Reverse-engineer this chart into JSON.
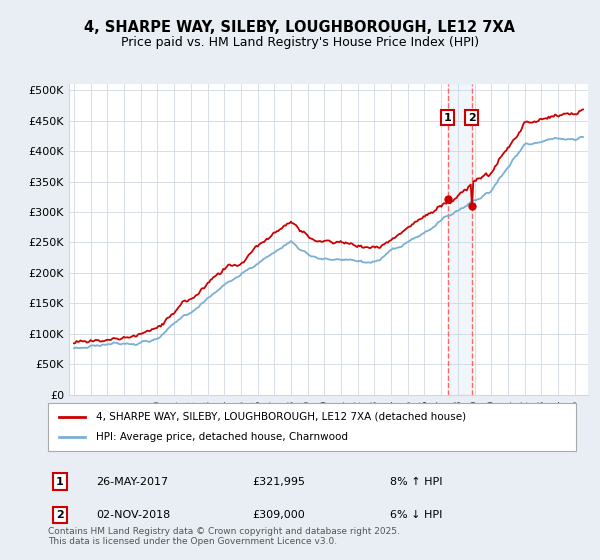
{
  "title1": "4, SHARPE WAY, SILEBY, LOUGHBOROUGH, LE12 7XA",
  "title2": "Price paid vs. HM Land Registry's House Price Index (HPI)",
  "ylabel_ticks": [
    "£0",
    "£50K",
    "£100K",
    "£150K",
    "£200K",
    "£250K",
    "£300K",
    "£350K",
    "£400K",
    "£450K",
    "£500K"
  ],
  "ytick_vals": [
    0,
    50000,
    100000,
    150000,
    200000,
    250000,
    300000,
    350000,
    400000,
    450000,
    500000
  ],
  "ylim": [
    0,
    510000
  ],
  "red_color": "#cc0000",
  "blue_color": "#7bafd4",
  "dashed_color": "#ff6666",
  "span_color": "#c8ddf0",
  "date1": 2017.396,
  "date2": 2018.838,
  "price1": 321995,
  "price2": 309000,
  "legend_label1": "4, SHARPE WAY, SILEBY, LOUGHBOROUGH, LE12 7XA (detached house)",
  "legend_label2": "HPI: Average price, detached house, Charnwood",
  "annotation1_num": "1",
  "annotation1_date": "26-MAY-2017",
  "annotation1_price": "£321,995",
  "annotation1_hpi": "8% ↑ HPI",
  "annotation2_num": "2",
  "annotation2_date": "02-NOV-2018",
  "annotation2_price": "£309,000",
  "annotation2_hpi": "6% ↓ HPI",
  "footer": "Contains HM Land Registry data © Crown copyright and database right 2025.\nThis data is licensed under the Open Government Licence v3.0.",
  "background_color": "#e8eef4",
  "plot_bg_color": "#ffffff",
  "grid_color": "#d0d8e0",
  "xtick_start": 1995,
  "xtick_end": 2025
}
